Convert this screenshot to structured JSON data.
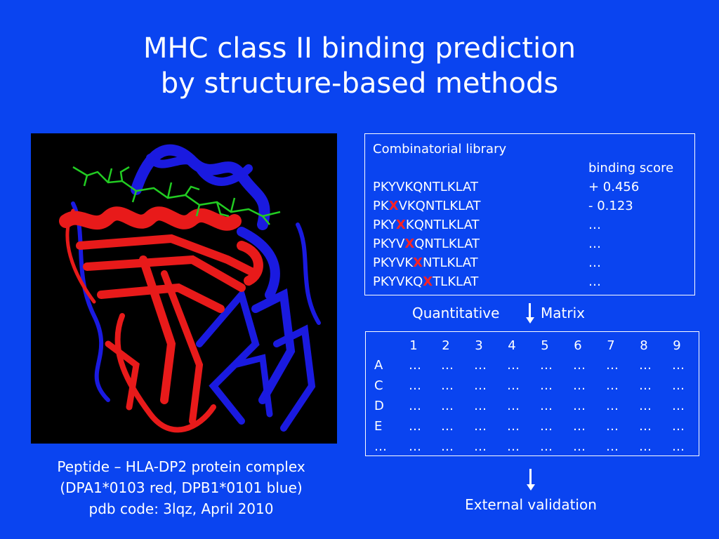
{
  "title": {
    "line1": "MHC class II binding prediction",
    "line2": "by structure-based methods"
  },
  "caption": {
    "line1": "Peptide – HLA-DP2 protein complex",
    "line2": "(DPA1*0103 red, DPB1*0101 blue)",
    "line3": "pdb code: 3lqz, April 2010"
  },
  "library": {
    "heading": "Combinatorial library",
    "score_header": "binding score",
    "rows": [
      {
        "pre": "PKYVKQNTLKLAT",
        "sub": "",
        "post": "",
        "score": "+ 0.456"
      },
      {
        "pre": "PK",
        "sub": "X",
        "post": "VKQNTLKLAT",
        "score": "- 0.123"
      },
      {
        "pre": "PKY",
        "sub": "X",
        "post": "KQNTLKLAT",
        "score": "…"
      },
      {
        "pre": "PKYV",
        "sub": "X",
        "post": "QNTLKLAT",
        "score": "…"
      },
      {
        "pre": "PKYVK",
        "sub": "X",
        "post": "NTLKLAT",
        "score": "…"
      },
      {
        "pre": "PKYVKQ",
        "sub": "X",
        "post": "TLKLAT",
        "score": "…"
      }
    ],
    "substitution_color": "#ff2222"
  },
  "flow": {
    "left_label": "Quantitative",
    "right_label": "Matrix",
    "bottom_label": "External validation"
  },
  "matrix": {
    "columns": [
      "1",
      "2",
      "3",
      "4",
      "5",
      "6",
      "7",
      "8",
      "9"
    ],
    "rows": [
      {
        "label": "A",
        "cells": [
          "…",
          "…",
          "…",
          "…",
          "…",
          "…",
          "…",
          "…",
          "…"
        ]
      },
      {
        "label": "C",
        "cells": [
          "…",
          "…",
          "…",
          "…",
          "…",
          "…",
          "…",
          "…",
          "…"
        ]
      },
      {
        "label": "D",
        "cells": [
          "…",
          "…",
          "…",
          "…",
          "…",
          "…",
          "…",
          "…",
          "…"
        ]
      },
      {
        "label": "E",
        "cells": [
          "…",
          "…",
          "…",
          "…",
          "…",
          "…",
          "…",
          "…",
          "…"
        ]
      },
      {
        "label": "…",
        "cells": [
          "…",
          "…",
          "…",
          "…",
          "…",
          "…",
          "…",
          "…",
          "…"
        ]
      }
    ]
  },
  "colors": {
    "background": "#0a44f0",
    "chain_alpha": "#e81a1a",
    "chain_beta": "#1a1ae0",
    "peptide": "#22cc22"
  }
}
